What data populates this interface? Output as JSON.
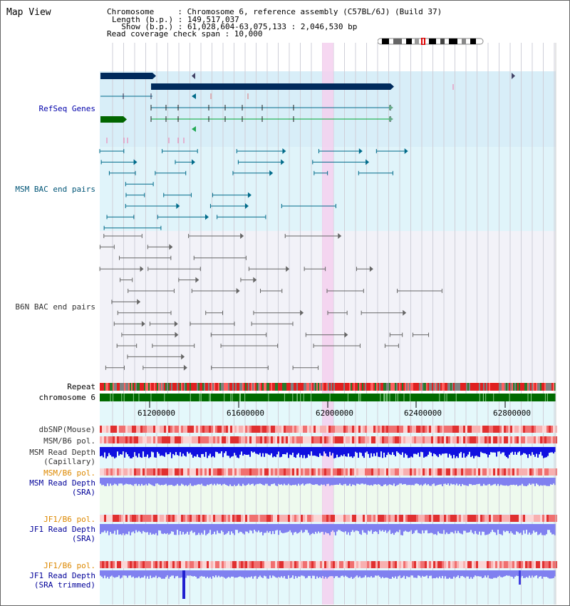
{
  "view_title": "Map View",
  "header": {
    "line1": "Chromosome     : Chromosome 6, reference assembly (C57BL/6J) (Build 37)",
    "line2": "Length (b.p.) : 149,517,037",
    "line3": "  Show (b.p.) : 61,028,604-63,075,133 : 2,046,530 bp",
    "line4": "Read coverage check span : 10,000"
  },
  "track_labels": {
    "refseq": "RefSeq Genes",
    "msm_bac": "MSM BAC end pairs",
    "b6n_bac": "B6N BAC end pairs",
    "repeat": "Repeat",
    "chromosome": "chromosome 6",
    "dbsnp": "dbSNP(Mouse)",
    "msm_b6_pol_1": "MSM/B6 pol.",
    "msm_read_depth_cap_1": "MSM Read Depth",
    "msm_read_depth_cap_2": "(Capillary)",
    "msm_b6_pol_2": "MSM/B6 pol.",
    "msm_read_depth_sra_1": "MSM Read Depth",
    "msm_read_depth_sra_2": "(SRA)",
    "jf1_b6_pol_1": "JF1/B6 pol.",
    "jf1_read_depth_sra_1": "JF1 Read Depth",
    "jf1_read_depth_sra_2": "(SRA)",
    "jf1_b6_pol_2": "JF1/B6 pol.",
    "jf1_read_depth_trim_1": "JF1 Read Depth",
    "jf1_read_depth_trim_2": "(SRA trimmed)"
  },
  "axis_ticks": [
    "61200000",
    "61600000",
    "62000000",
    "62400000",
    "62800000"
  ],
  "colors": {
    "refseq_bg": "#d8eef8",
    "msm_bg": "#e0f4fa",
    "b6n_bg": "#f2f2f8",
    "highlight": "#f5d0ee",
    "gene_navy": "#002a5c",
    "gene_green": "#006600",
    "bac_teal": "#006b8a",
    "bac_gray": "#666666",
    "depth_blue": "#1010e0",
    "depth_light": "#8080f0",
    "pol_red": "#e03030",
    "pol_pink": "#f8b0b0"
  }
}
